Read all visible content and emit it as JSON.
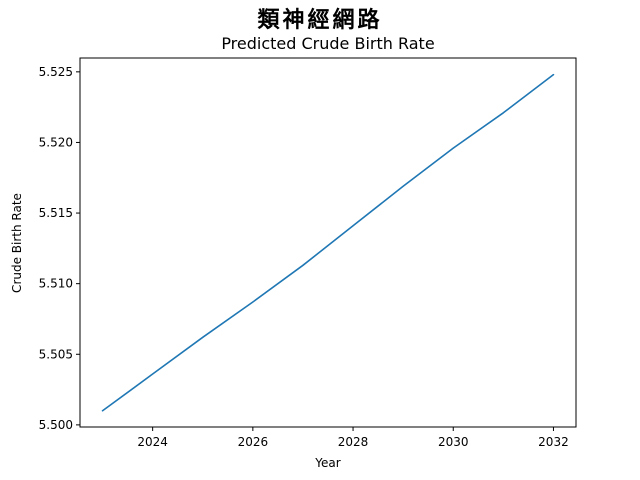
{
  "figure": {
    "suptitle": "類神經網路"
  },
  "chart_data": {
    "type": "line",
    "title": "Predicted Crude Birth Rate",
    "xlabel": "Year",
    "ylabel": "Crude Birth Rate",
    "xlim": [
      2022.55,
      2032.45
    ],
    "ylim": [
      5.49985,
      5.52598
    ],
    "xticks": [
      2024,
      2026,
      2028,
      2030,
      2032
    ],
    "xtick_labels": [
      "2024",
      "2026",
      "2028",
      "2030",
      "2032"
    ],
    "yticks": [
      5.5,
      5.505,
      5.51,
      5.515,
      5.52,
      5.525
    ],
    "ytick_labels": [
      "5.500",
      "5.505",
      "5.510",
      "5.515",
      "5.520",
      "5.525"
    ],
    "grid": false,
    "legend": "none",
    "series": [
      {
        "color": "#1f77b4",
        "x": [
          2023,
          2024,
          2025,
          2026,
          2027,
          2028,
          2029,
          2030,
          2031,
          2032
        ],
        "y": [
          5.501,
          5.5036,
          5.5062,
          5.5087,
          5.5113,
          5.5141,
          5.5169,
          5.5196,
          5.5221,
          5.5248
        ]
      }
    ]
  }
}
